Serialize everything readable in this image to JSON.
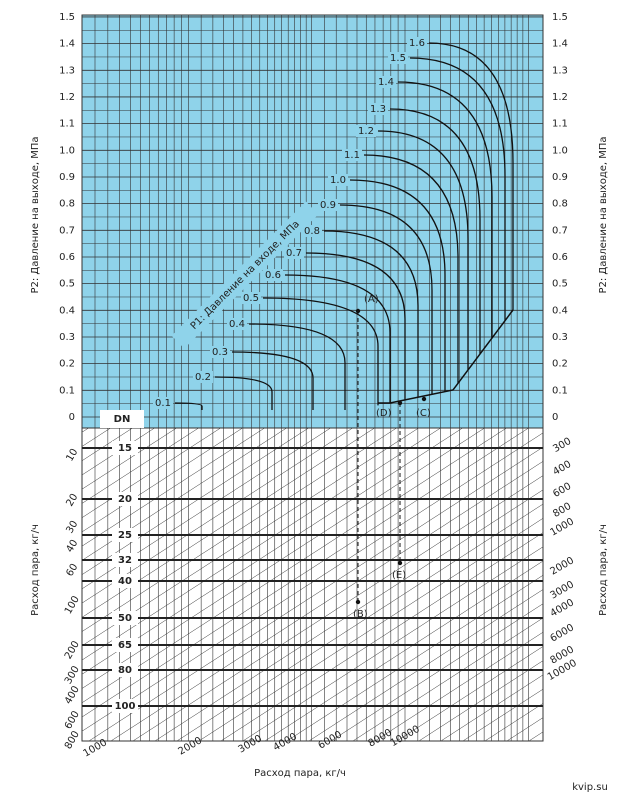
{
  "top_panel": {
    "y_label_left": "P2: Давление на выходе, МПа",
    "y_label_right": "P2: Давление на выходе, МПа",
    "p1_label": "P1: Давление на входе, МПа",
    "y_ticks": [
      "0",
      "0.1",
      "0.2",
      "0.3",
      "0.4",
      "0.5",
      "0.6",
      "0.7",
      "0.8",
      "0.9",
      "1.0",
      "1.1",
      "1.2",
      "1.3",
      "1.4",
      "1.5"
    ],
    "p1_curves": [
      "0.1",
      "0.2",
      "0.3",
      "0.4",
      "0.5",
      "0.6",
      "0.7",
      "0.8",
      "0.9",
      "1.0",
      "1.1",
      "1.2",
      "1.3",
      "1.4",
      "1.5",
      "1.6"
    ],
    "points": [
      "(A)",
      "(D)",
      "(C)"
    ]
  },
  "bottom_panel": {
    "dn_label": "DN",
    "dn_values": [
      "15",
      "20",
      "25",
      "32",
      "40",
      "50",
      "65",
      "80",
      "100"
    ],
    "left_scale": [
      "10",
      "20",
      "30",
      "40",
      "60",
      "100",
      "200",
      "300",
      "400",
      "600",
      "800"
    ],
    "right_scale": [
      "300",
      "400",
      "600",
      "800",
      "1000",
      "2000",
      "3000",
      "4000",
      "6000",
      "8000",
      "10000"
    ],
    "bottom_scale": [
      "1000",
      "2000",
      "3000",
      "4000",
      "6000",
      "8000",
      "10000"
    ],
    "y_label_left": "Расход пара, кг/ч",
    "y_label_right": "Расход пара, кг/ч",
    "x_label": "Расход пара, кг/ч",
    "points": [
      "(B)",
      "(E)"
    ]
  },
  "watermark": "kvip.su"
}
